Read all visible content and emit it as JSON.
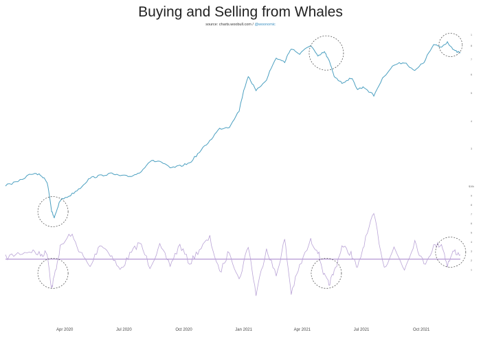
{
  "chart_data": {
    "type": "line",
    "title": "Buying and Selling from Whales",
    "subtitle_source": "source: charts.woobull.com /",
    "subtitle_handle": "@woonomic",
    "x_ticks": [
      "Apr 2020",
      "Jul 2020",
      "Oct 2020",
      "Jan 2021",
      "Apr 2021",
      "Jul 2021",
      "Oct 2021"
    ],
    "x_range": [
      "2020-01-01",
      "2021-11-30"
    ],
    "price_axis_labels": [
      "1",
      "8",
      "7",
      "6",
      "5",
      "4",
      "3"
    ],
    "flow_axis_labels": [
      "$10k",
      "9",
      "8",
      "7",
      "6",
      "5",
      "4",
      "3",
      "2",
      "1"
    ],
    "price_line_color": "#4a9fc0",
    "flow_line_color": "#b9a3d6",
    "zero_line_color": "#a07cc8",
    "circle_color": "#555555",
    "series": [
      {
        "key": "price",
        "x": [
          "2020-01-01",
          "2020-01-20",
          "2020-02-10",
          "2020-02-24",
          "2020-03-05",
          "2020-03-12",
          "2020-03-16",
          "2020-03-25",
          "2020-04-10",
          "2020-04-25",
          "2020-05-10",
          "2020-05-25",
          "2020-06-10",
          "2020-06-25",
          "2020-07-10",
          "2020-07-25",
          "2020-08-10",
          "2020-08-25",
          "2020-09-10",
          "2020-09-25",
          "2020-10-10",
          "2020-10-25",
          "2020-11-10",
          "2020-11-25",
          "2020-12-10",
          "2020-12-25",
          "2021-01-08",
          "2021-01-20",
          "2021-02-05",
          "2021-02-20",
          "2021-03-05",
          "2021-03-15",
          "2021-03-28",
          "2021-04-14",
          "2021-04-25",
          "2021-05-05",
          "2021-05-12",
          "2021-05-20",
          "2021-06-01",
          "2021-06-15",
          "2021-06-25",
          "2021-07-05",
          "2021-07-20",
          "2021-08-05",
          "2021-08-20",
          "2021-09-05",
          "2021-09-21",
          "2021-10-05",
          "2021-10-20",
          "2021-11-01",
          "2021-11-10",
          "2021-11-20",
          "2021-11-30"
        ],
        "y": [
          8100,
          8500,
          9600,
          9400,
          8500,
          5500,
          5000,
          6500,
          7000,
          7800,
          9000,
          9300,
          9600,
          9300,
          9200,
          9700,
          11500,
          11500,
          10400,
          10700,
          11200,
          13100,
          15500,
          18500,
          19000,
          24000,
          40000,
          32000,
          38000,
          52000,
          49000,
          60000,
          55000,
          63000,
          53000,
          57000,
          50000,
          40000,
          36000,
          39000,
          33000,
          34000,
          30000,
          40000,
          47000,
          49000,
          43000,
          49000,
          63000,
          61000,
          66000,
          58000,
          56000
        ]
      },
      {
        "key": "whale_flow",
        "x": [
          "2020-01-01",
          "2020-01-20",
          "2020-02-10",
          "2020-02-24",
          "2020-03-05",
          "2020-03-12",
          "2020-03-16",
          "2020-03-25",
          "2020-04-10",
          "2020-04-25",
          "2020-05-10",
          "2020-05-25",
          "2020-06-10",
          "2020-06-25",
          "2020-07-10",
          "2020-07-25",
          "2020-08-10",
          "2020-08-25",
          "2020-09-10",
          "2020-09-25",
          "2020-10-10",
          "2020-10-25",
          "2020-11-10",
          "2020-11-25",
          "2020-12-10",
          "2020-12-25",
          "2021-01-08",
          "2021-01-20",
          "2021-02-05",
          "2021-02-20",
          "2021-03-05",
          "2021-03-15",
          "2021-03-28",
          "2021-04-14",
          "2021-04-25",
          "2021-05-05",
          "2021-05-12",
          "2021-05-20",
          "2021-06-01",
          "2021-06-15",
          "2021-06-25",
          "2021-07-05",
          "2021-07-20",
          "2021-08-05",
          "2021-08-20",
          "2021-09-05",
          "2021-09-21",
          "2021-10-05",
          "2021-10-20",
          "2021-11-01",
          "2021-11-10",
          "2021-11-20",
          "2021-11-30"
        ],
        "y": [
          0.1,
          0.4,
          0.6,
          0.3,
          0.5,
          -2.1,
          -1.2,
          0.8,
          1.8,
          0.5,
          -0.6,
          1.1,
          0.4,
          -0.8,
          0.3,
          1.2,
          -0.5,
          0.9,
          -0.4,
          1.0,
          -0.3,
          0.7,
          1.5,
          -1.0,
          0.6,
          -1.5,
          1.0,
          -2.5,
          0.8,
          -1.2,
          1.4,
          -2.4,
          -0.5,
          1.3,
          0.6,
          -1.2,
          -1.8,
          -0.9,
          0.9,
          0.4,
          -0.7,
          1.1,
          3.2,
          -0.6,
          0.8,
          -0.7,
          1.3,
          -0.4,
          0.9,
          1.1,
          -0.4,
          0.6,
          0.3
        ]
      }
    ],
    "price_ylim": [
      5000,
      70000
    ],
    "flow_ylim": [
      -4,
      3.2
    ],
    "annotations": [
      {
        "type": "circle",
        "x": "2020-03-14",
        "on": "price",
        "y": 5500
      },
      {
        "type": "circle",
        "x": "2021-05-08",
        "on": "price",
        "y": 56000
      },
      {
        "type": "circle",
        "x": "2021-11-15",
        "on": "price",
        "y": 63000
      },
      {
        "type": "circle",
        "x": "2020-03-14",
        "on": "whale_flow",
        "y": -1.0
      },
      {
        "type": "circle",
        "x": "2021-05-08",
        "on": "whale_flow",
        "y": -1.0
      },
      {
        "type": "circle",
        "x": "2021-11-15",
        "on": "whale_flow",
        "y": 0.5
      }
    ],
    "grid": false,
    "legend": "none"
  }
}
